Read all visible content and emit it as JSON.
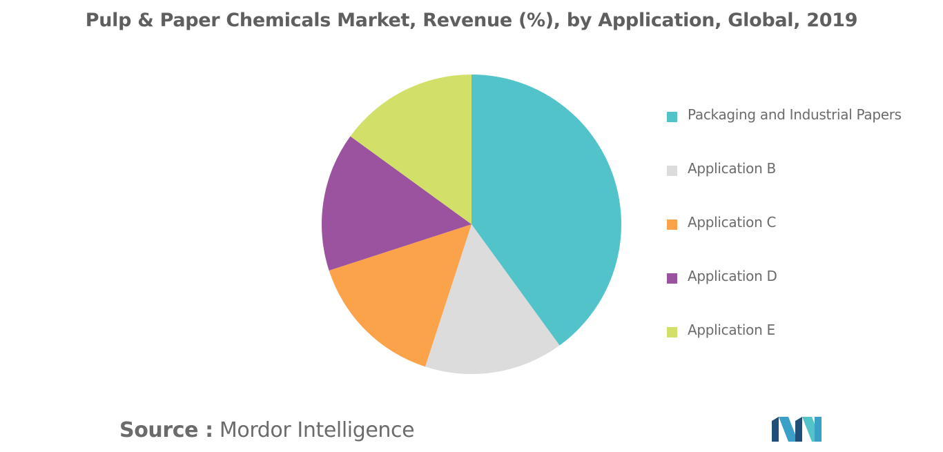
{
  "chart_data": {
    "type": "pie",
    "title": "Pulp & Paper Chemicals Market, Revenue (%), by Application, Global, 2019",
    "legend_position": "right",
    "series": [
      {
        "name": "",
        "values": [
          40,
          15,
          15,
          15,
          15
        ]
      }
    ],
    "categories": [
      "Packaging and Industrial Papers",
      "Application B",
      "Application C",
      "Application D",
      "Application E"
    ],
    "colors": [
      "#52c4c9",
      "#dcdcdc",
      "#fba34a",
      "#9b529f",
      "#d2e06a"
    ],
    "start_angle_deg": 0,
    "direction": "clockwise"
  },
  "source": {
    "label": "Source :",
    "text": "Mordor Intelligence"
  },
  "logo": {
    "icon": "mordor-intelligence-logo-icon",
    "colors": [
      "#1f4e79",
      "#3aa0c8",
      "#52c4c9"
    ]
  }
}
